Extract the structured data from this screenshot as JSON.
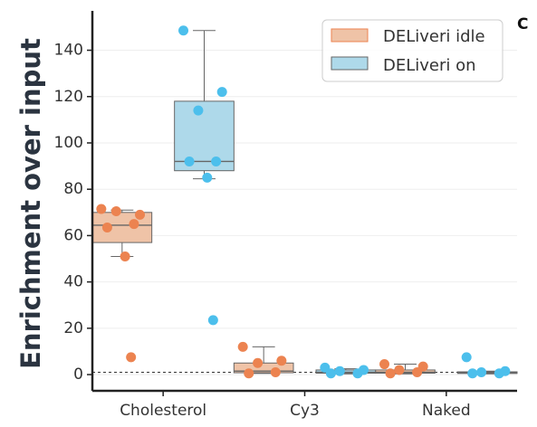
{
  "panel_letter": "C",
  "colors": {
    "idle_box": "#efc3a7",
    "idle_point": "#ec8350",
    "on_box": "#aed9ea",
    "on_point": "#4cbfec",
    "axis": "#222222",
    "grid": "#eeeeee",
    "whisker": "#666666",
    "baseline": "#333333"
  },
  "chart_data": {
    "type": "box",
    "title": "",
    "xlabel": "",
    "ylabel": "Enrichment over input",
    "ylim": [
      -7,
      157
    ],
    "yticks": [
      0,
      20,
      40,
      60,
      80,
      100,
      120,
      140
    ],
    "grid": true,
    "legend_position": "top-right",
    "reference_line": 1,
    "categories": [
      "Cholesterol",
      "Cy3",
      "Naked"
    ],
    "series": [
      {
        "name": "DELiveri idle",
        "boxes": [
          {
            "whislo": 51,
            "q1": 57,
            "med": 64.5,
            "q3": 70,
            "whishi": 71,
            "points": [
              71.5,
              69,
              70.5,
              65,
              63.5,
              51,
              7.5
            ]
          },
          {
            "whislo": 0.5,
            "q1": 0.8,
            "med": 1.5,
            "q3": 5,
            "whishi": 12,
            "points": [
              12,
              6,
              5,
              1,
              0.5
            ]
          },
          {
            "whislo": 0.3,
            "q1": 0.6,
            "med": 1,
            "q3": 2,
            "whishi": 4.5,
            "points": [
              4.5,
              3.5,
              2,
              1,
              0.5
            ]
          }
        ]
      },
      {
        "name": "DELiveri on",
        "boxes": [
          {
            "whislo": 84.5,
            "q1": 88,
            "med": 92,
            "q3": 118,
            "whishi": 148.5,
            "points": [
              148.5,
              122,
              114,
              92,
              92,
              85,
              23.5
            ]
          },
          {
            "whislo": 0.3,
            "q1": 0.6,
            "med": 1,
            "q3": 2,
            "whishi": 2.5,
            "points": [
              3,
              2,
              1.5,
              0.5,
              0.5
            ]
          },
          {
            "whislo": 0.3,
            "q1": 0.5,
            "med": 0.8,
            "q3": 1.2,
            "whishi": 1.5,
            "points": [
              7.5,
              1.5,
              1,
              0.5,
              0.5
            ]
          }
        ]
      }
    ]
  }
}
